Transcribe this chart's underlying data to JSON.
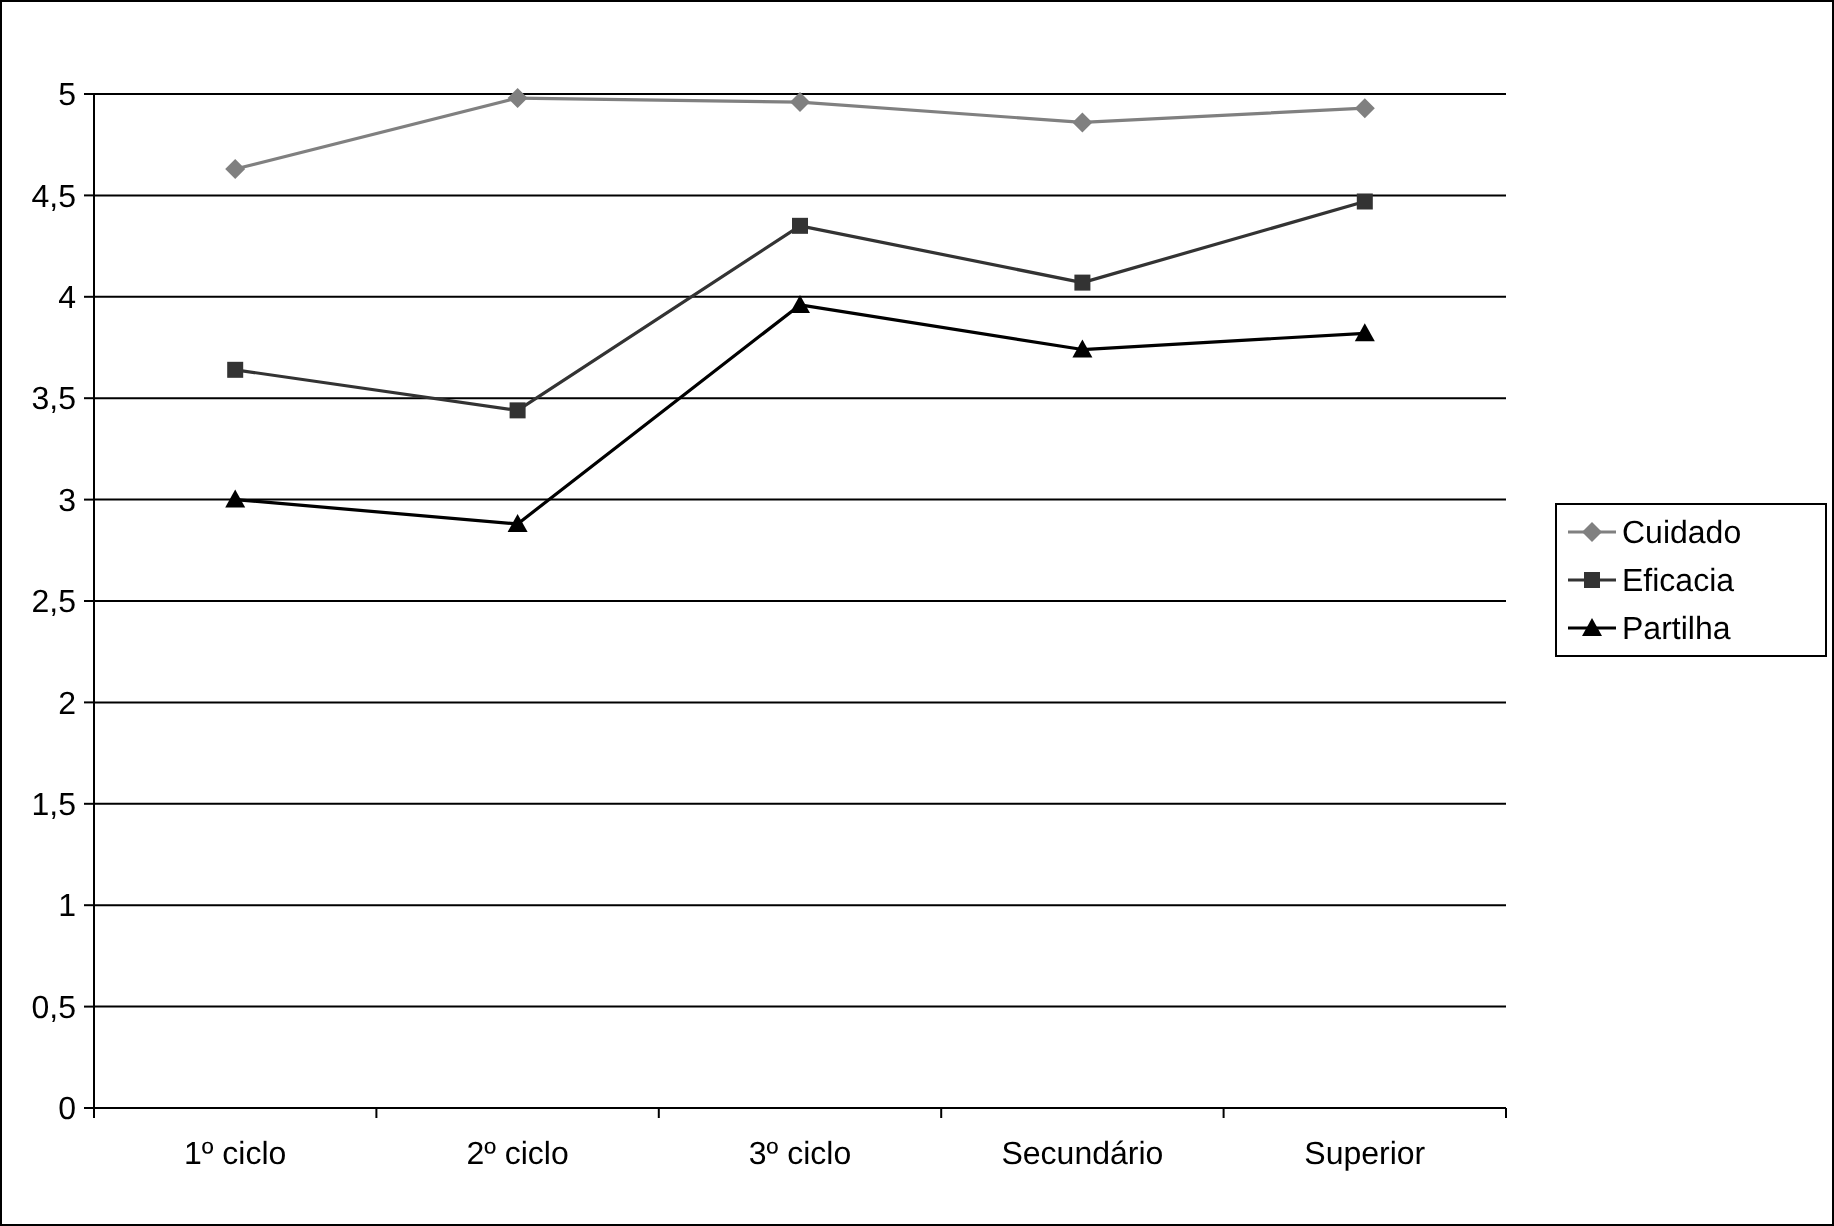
{
  "chart_data": {
    "type": "line",
    "categories": [
      "1º ciclo",
      "2º ciclo",
      "3º ciclo",
      "Secundário",
      "Superior"
    ],
    "series": [
      {
        "name": "Cuidado",
        "color": "#808080",
        "marker": "diamond",
        "values": [
          4.63,
          4.98,
          4.96,
          4.86,
          4.93
        ]
      },
      {
        "name": "Eficacia",
        "color": "#333333",
        "marker": "square",
        "values": [
          3.64,
          3.44,
          4.35,
          4.07,
          4.47
        ]
      },
      {
        "name": "Partilha",
        "color": "#000000",
        "marker": "triangle",
        "values": [
          3.0,
          2.88,
          3.96,
          3.74,
          3.82
        ]
      }
    ],
    "ylim": [
      0,
      5
    ],
    "yticks": [
      0,
      {
        "value": 0.5,
        "label": "0,5"
      },
      1,
      {
        "value": 1.5,
        "label": "1,5"
      },
      2,
      {
        "value": 2.5,
        "label": "2,5"
      },
      3,
      {
        "value": 3.5,
        "label": "3,5"
      },
      4,
      {
        "value": 4.5,
        "label": "4,5"
      },
      5
    ],
    "grid": "y",
    "legend": "right"
  }
}
